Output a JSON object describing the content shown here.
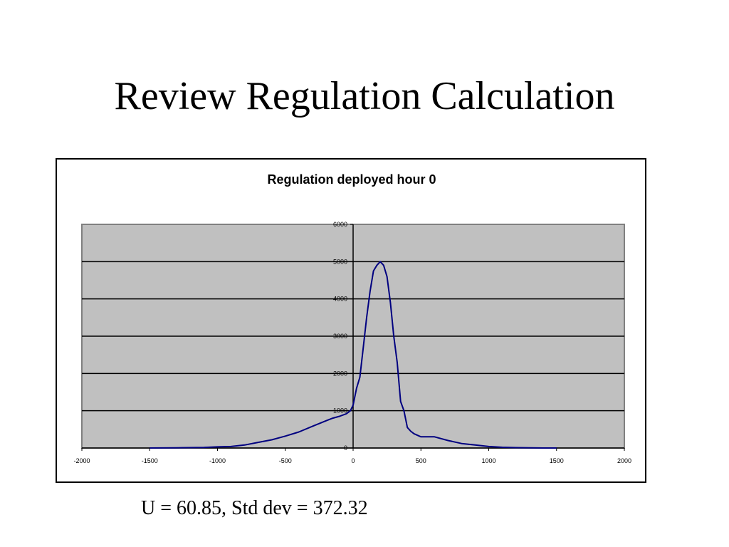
{
  "slide": {
    "title": "Review Regulation Calculation",
    "caption": "U = 60.85, Std dev = 372.32"
  },
  "colors": {
    "plot_bg": "#c0c0c0",
    "line": "#000080",
    "grid": "#000000"
  },
  "chart_data": {
    "type": "line",
    "title": "Regulation deployed hour 0",
    "xlabel": "",
    "ylabel": "",
    "xlim": [
      -2000,
      2000
    ],
    "ylim": [
      0,
      6000
    ],
    "x_ticks": [
      -2000,
      -1500,
      -1000,
      -500,
      0,
      500,
      1000,
      1500,
      2000
    ],
    "y_ticks": [
      0,
      1000,
      2000,
      3000,
      4000,
      5000,
      6000
    ],
    "grid": true,
    "legend": "none",
    "series": [
      {
        "x": [
          -1500,
          -1300,
          -1100,
          -1000,
          -900,
          -800,
          -700,
          -600,
          -500,
          -400,
          -300,
          -200,
          -150,
          -100,
          -50,
          -20,
          0,
          25,
          50,
          75,
          100,
          125,
          150,
          175,
          200,
          225,
          250,
          275,
          300,
          325,
          350,
          375,
          400,
          425,
          450,
          500,
          550,
          600,
          700,
          800,
          900,
          1000,
          1100,
          1200,
          1300,
          1400,
          1500
        ],
        "values": [
          0,
          5,
          15,
          30,
          40,
          80,
          150,
          220,
          320,
          430,
          580,
          730,
          800,
          850,
          920,
          1000,
          1150,
          1600,
          1900,
          2700,
          3500,
          4200,
          4750,
          4900,
          5000,
          4900,
          4600,
          3900,
          3000,
          2300,
          1250,
          1000,
          550,
          450,
          380,
          300,
          300,
          300,
          200,
          120,
          80,
          40,
          20,
          10,
          5,
          0,
          0
        ]
      }
    ]
  }
}
